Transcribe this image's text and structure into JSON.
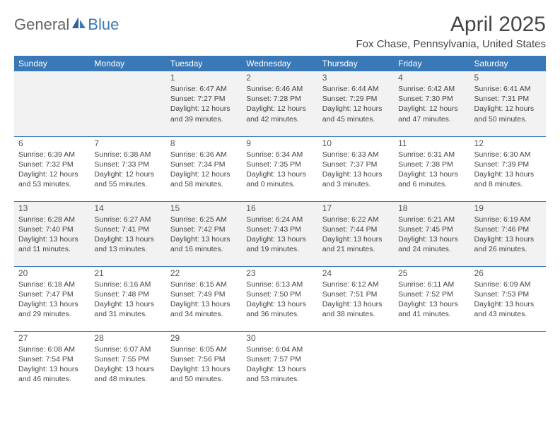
{
  "brand": {
    "part1": "General",
    "part2": "Blue"
  },
  "title": "April 2025",
  "location": "Fox Chase, Pennsylvania, United States",
  "colors": {
    "header_bg": "#3a79b7",
    "header_text": "#ffffff",
    "alt_row_bg": "#f2f2f2",
    "text": "#444444",
    "title_color": "#454545",
    "border": "#3a79b7"
  },
  "typography": {
    "title_fontsize": 30,
    "location_fontsize": 15,
    "header_fontsize": 12,
    "cell_fontsize": 10.5,
    "daynum_fontsize": 12
  },
  "day_headers": [
    "Sunday",
    "Monday",
    "Tuesday",
    "Wednesday",
    "Thursday",
    "Friday",
    "Saturday"
  ],
  "weeks": [
    [
      null,
      null,
      {
        "n": "1",
        "sr": "Sunrise: 6:47 AM",
        "ss": "Sunset: 7:27 PM",
        "d1": "Daylight: 12 hours",
        "d2": "and 39 minutes."
      },
      {
        "n": "2",
        "sr": "Sunrise: 6:46 AM",
        "ss": "Sunset: 7:28 PM",
        "d1": "Daylight: 12 hours",
        "d2": "and 42 minutes."
      },
      {
        "n": "3",
        "sr": "Sunrise: 6:44 AM",
        "ss": "Sunset: 7:29 PM",
        "d1": "Daylight: 12 hours",
        "d2": "and 45 minutes."
      },
      {
        "n": "4",
        "sr": "Sunrise: 6:42 AM",
        "ss": "Sunset: 7:30 PM",
        "d1": "Daylight: 12 hours",
        "d2": "and 47 minutes."
      },
      {
        "n": "5",
        "sr": "Sunrise: 6:41 AM",
        "ss": "Sunset: 7:31 PM",
        "d1": "Daylight: 12 hours",
        "d2": "and 50 minutes."
      }
    ],
    [
      {
        "n": "6",
        "sr": "Sunrise: 6:39 AM",
        "ss": "Sunset: 7:32 PM",
        "d1": "Daylight: 12 hours",
        "d2": "and 53 minutes."
      },
      {
        "n": "7",
        "sr": "Sunrise: 6:38 AM",
        "ss": "Sunset: 7:33 PM",
        "d1": "Daylight: 12 hours",
        "d2": "and 55 minutes."
      },
      {
        "n": "8",
        "sr": "Sunrise: 6:36 AM",
        "ss": "Sunset: 7:34 PM",
        "d1": "Daylight: 12 hours",
        "d2": "and 58 minutes."
      },
      {
        "n": "9",
        "sr": "Sunrise: 6:34 AM",
        "ss": "Sunset: 7:35 PM",
        "d1": "Daylight: 13 hours",
        "d2": "and 0 minutes."
      },
      {
        "n": "10",
        "sr": "Sunrise: 6:33 AM",
        "ss": "Sunset: 7:37 PM",
        "d1": "Daylight: 13 hours",
        "d2": "and 3 minutes."
      },
      {
        "n": "11",
        "sr": "Sunrise: 6:31 AM",
        "ss": "Sunset: 7:38 PM",
        "d1": "Daylight: 13 hours",
        "d2": "and 6 minutes."
      },
      {
        "n": "12",
        "sr": "Sunrise: 6:30 AM",
        "ss": "Sunset: 7:39 PM",
        "d1": "Daylight: 13 hours",
        "d2": "and 8 minutes."
      }
    ],
    [
      {
        "n": "13",
        "sr": "Sunrise: 6:28 AM",
        "ss": "Sunset: 7:40 PM",
        "d1": "Daylight: 13 hours",
        "d2": "and 11 minutes."
      },
      {
        "n": "14",
        "sr": "Sunrise: 6:27 AM",
        "ss": "Sunset: 7:41 PM",
        "d1": "Daylight: 13 hours",
        "d2": "and 13 minutes."
      },
      {
        "n": "15",
        "sr": "Sunrise: 6:25 AM",
        "ss": "Sunset: 7:42 PM",
        "d1": "Daylight: 13 hours",
        "d2": "and 16 minutes."
      },
      {
        "n": "16",
        "sr": "Sunrise: 6:24 AM",
        "ss": "Sunset: 7:43 PM",
        "d1": "Daylight: 13 hours",
        "d2": "and 19 minutes."
      },
      {
        "n": "17",
        "sr": "Sunrise: 6:22 AM",
        "ss": "Sunset: 7:44 PM",
        "d1": "Daylight: 13 hours",
        "d2": "and 21 minutes."
      },
      {
        "n": "18",
        "sr": "Sunrise: 6:21 AM",
        "ss": "Sunset: 7:45 PM",
        "d1": "Daylight: 13 hours",
        "d2": "and 24 minutes."
      },
      {
        "n": "19",
        "sr": "Sunrise: 6:19 AM",
        "ss": "Sunset: 7:46 PM",
        "d1": "Daylight: 13 hours",
        "d2": "and 26 minutes."
      }
    ],
    [
      {
        "n": "20",
        "sr": "Sunrise: 6:18 AM",
        "ss": "Sunset: 7:47 PM",
        "d1": "Daylight: 13 hours",
        "d2": "and 29 minutes."
      },
      {
        "n": "21",
        "sr": "Sunrise: 6:16 AM",
        "ss": "Sunset: 7:48 PM",
        "d1": "Daylight: 13 hours",
        "d2": "and 31 minutes."
      },
      {
        "n": "22",
        "sr": "Sunrise: 6:15 AM",
        "ss": "Sunset: 7:49 PM",
        "d1": "Daylight: 13 hours",
        "d2": "and 34 minutes."
      },
      {
        "n": "23",
        "sr": "Sunrise: 6:13 AM",
        "ss": "Sunset: 7:50 PM",
        "d1": "Daylight: 13 hours",
        "d2": "and 36 minutes."
      },
      {
        "n": "24",
        "sr": "Sunrise: 6:12 AM",
        "ss": "Sunset: 7:51 PM",
        "d1": "Daylight: 13 hours",
        "d2": "and 38 minutes."
      },
      {
        "n": "25",
        "sr": "Sunrise: 6:11 AM",
        "ss": "Sunset: 7:52 PM",
        "d1": "Daylight: 13 hours",
        "d2": "and 41 minutes."
      },
      {
        "n": "26",
        "sr": "Sunrise: 6:09 AM",
        "ss": "Sunset: 7:53 PM",
        "d1": "Daylight: 13 hours",
        "d2": "and 43 minutes."
      }
    ],
    [
      {
        "n": "27",
        "sr": "Sunrise: 6:08 AM",
        "ss": "Sunset: 7:54 PM",
        "d1": "Daylight: 13 hours",
        "d2": "and 46 minutes."
      },
      {
        "n": "28",
        "sr": "Sunrise: 6:07 AM",
        "ss": "Sunset: 7:55 PM",
        "d1": "Daylight: 13 hours",
        "d2": "and 48 minutes."
      },
      {
        "n": "29",
        "sr": "Sunrise: 6:05 AM",
        "ss": "Sunset: 7:56 PM",
        "d1": "Daylight: 13 hours",
        "d2": "and 50 minutes."
      },
      {
        "n": "30",
        "sr": "Sunrise: 6:04 AM",
        "ss": "Sunset: 7:57 PM",
        "d1": "Daylight: 13 hours",
        "d2": "and 53 minutes."
      },
      null,
      null,
      null
    ]
  ]
}
